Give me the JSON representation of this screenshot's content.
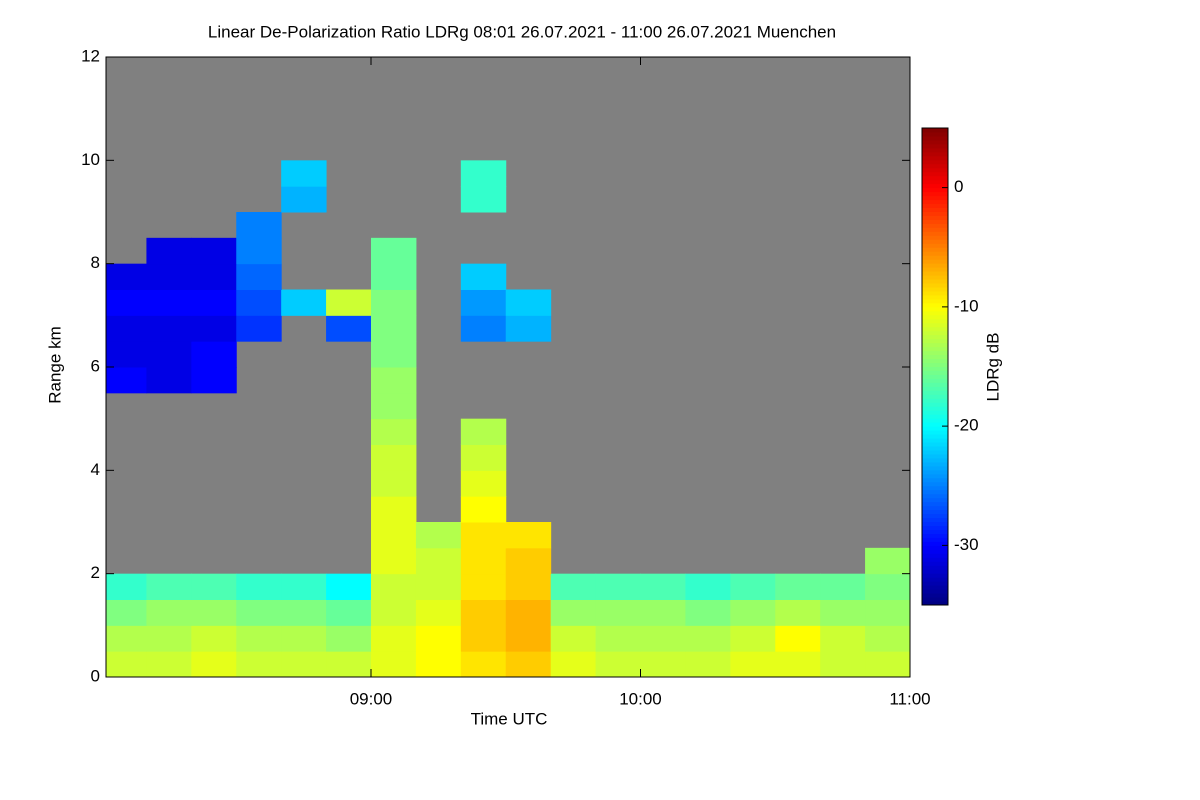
{
  "chart_data": {
    "type": "heatmap",
    "title": "Linear De-Polarization Ratio LDRg   08:01 26.07.2021 - 11:00 26.07.2021 Muenchen",
    "x_label": "Time UTC",
    "y_label": "Range km",
    "colorbar_label": "LDRg dB",
    "xlim": [
      8.0167,
      11
    ],
    "xticks": [
      {
        "value": 9,
        "label": "09:00"
      },
      {
        "value": 10,
        "label": "10:00"
      },
      {
        "value": 11,
        "label": "11:00"
      }
    ],
    "ylim": [
      0,
      12
    ],
    "yticks": [
      0,
      2,
      4,
      6,
      8,
      10,
      12
    ],
    "zlim": [
      -35,
      5
    ],
    "zticks": [
      0,
      -10,
      -20,
      -30
    ],
    "colormap": "jet",
    "background": "#808080",
    "x_bins": [
      8.0167,
      8.1667,
      8.3333,
      8.5,
      8.6667,
      8.8333,
      9,
      9.1667,
      9.3333,
      9.5,
      9.6667,
      9.8333,
      10,
      10.1667,
      10.3333,
      10.5,
      10.6667,
      10.8333,
      11
    ],
    "y_bins": [
      0,
      0.5,
      1,
      1.5,
      2,
      2.5,
      3,
      3.5,
      4,
      4.5,
      5,
      5.5,
      6,
      6.5,
      7,
      7.5,
      8,
      8.5,
      9,
      9.5,
      10,
      10.5,
      11,
      11.5,
      12
    ],
    "z": [
      [
        -12,
        -12,
        -11,
        -12,
        -12,
        -12,
        -11,
        -10,
        -9,
        -8,
        -11,
        -12,
        -12,
        -12,
        -11,
        -11,
        -12,
        -12
      ],
      [
        -13,
        -13,
        -12,
        -13,
        -13,
        -14,
        -11,
        -10,
        -8,
        -7,
        -12,
        -13,
        -13,
        -13,
        -12,
        -10,
        -12,
        -13
      ],
      [
        -15,
        -14,
        -14,
        -15,
        -15,
        -16,
        -12,
        -11,
        -8,
        -7,
        -14,
        -14,
        -14,
        -15,
        -14,
        -13,
        -14,
        -14
      ],
      [
        -18,
        -17,
        -17,
        -18,
        -18,
        -20,
        -12,
        -12,
        -9,
        -8,
        -17,
        -17,
        -17,
        -18,
        -17,
        -16,
        -16,
        -15
      ],
      [
        null,
        null,
        null,
        null,
        null,
        null,
        -11,
        -12,
        -9,
        -8,
        null,
        null,
        null,
        null,
        null,
        null,
        null,
        -14
      ],
      [
        null,
        null,
        null,
        null,
        null,
        null,
        -11,
        -13,
        -9,
        -9,
        null,
        null,
        null,
        null,
        null,
        null,
        null,
        null
      ],
      [
        null,
        null,
        null,
        null,
        null,
        null,
        -11,
        null,
        -10,
        null,
        null,
        null,
        null,
        null,
        null,
        null,
        null,
        null
      ],
      [
        null,
        null,
        null,
        null,
        null,
        null,
        -12,
        null,
        -11,
        null,
        null,
        null,
        null,
        null,
        null,
        null,
        null,
        null
      ],
      [
        null,
        null,
        null,
        null,
        null,
        null,
        -12,
        null,
        -12,
        null,
        null,
        null,
        null,
        null,
        null,
        null,
        null,
        null
      ],
      [
        null,
        null,
        null,
        null,
        null,
        null,
        -13,
        null,
        -13,
        null,
        null,
        null,
        null,
        null,
        null,
        null,
        null,
        null
      ],
      [
        null,
        null,
        null,
        null,
        null,
        null,
        -14,
        null,
        null,
        null,
        null,
        null,
        null,
        null,
        null,
        null,
        null,
        null
      ],
      [
        -30,
        -31,
        -30,
        null,
        null,
        null,
        -14,
        null,
        null,
        null,
        null,
        null,
        null,
        null,
        null,
        null,
        null,
        null
      ],
      [
        -31,
        -31,
        -30,
        null,
        null,
        null,
        -15,
        null,
        null,
        null,
        null,
        null,
        null,
        null,
        null,
        null,
        null,
        null
      ],
      [
        -31,
        -31,
        -31,
        -28,
        null,
        -27,
        -15,
        null,
        -25,
        -23,
        null,
        null,
        null,
        null,
        null,
        null,
        null,
        null
      ],
      [
        -30,
        -30,
        -30,
        -27,
        -22,
        -12,
        -15,
        null,
        -24,
        -22,
        null,
        null,
        null,
        null,
        null,
        null,
        null,
        null
      ],
      [
        -31,
        -31,
        -31,
        -26,
        null,
        null,
        -16,
        null,
        -22,
        null,
        null,
        null,
        null,
        null,
        null,
        null,
        null,
        null
      ],
      [
        null,
        -31,
        -31,
        -25,
        null,
        null,
        -16,
        null,
        null,
        null,
        null,
        null,
        null,
        null,
        null,
        null,
        null,
        null
      ],
      [
        null,
        null,
        null,
        -25,
        null,
        null,
        null,
        null,
        null,
        null,
        null,
        null,
        null,
        null,
        null,
        null,
        null,
        null
      ],
      [
        null,
        null,
        null,
        null,
        -23,
        null,
        null,
        null,
        -18,
        null,
        null,
        null,
        null,
        null,
        null,
        null,
        null,
        null
      ],
      [
        null,
        null,
        null,
        null,
        -22,
        null,
        null,
        null,
        -18,
        null,
        null,
        null,
        null,
        null,
        null,
        null,
        null,
        null
      ],
      [
        null,
        null,
        null,
        null,
        null,
        null,
        null,
        null,
        null,
        null,
        null,
        null,
        null,
        null,
        null,
        null,
        null,
        null
      ],
      [
        null,
        null,
        null,
        null,
        null,
        null,
        null,
        null,
        null,
        null,
        null,
        null,
        null,
        null,
        null,
        null,
        null,
        null
      ],
      [
        null,
        null,
        null,
        null,
        null,
        null,
        null,
        null,
        null,
        null,
        null,
        null,
        null,
        null,
        null,
        null,
        null,
        null
      ],
      [
        null,
        null,
        null,
        null,
        null,
        null,
        null,
        null,
        null,
        null,
        null,
        null,
        null,
        null,
        null,
        null,
        null,
        null
      ]
    ]
  }
}
